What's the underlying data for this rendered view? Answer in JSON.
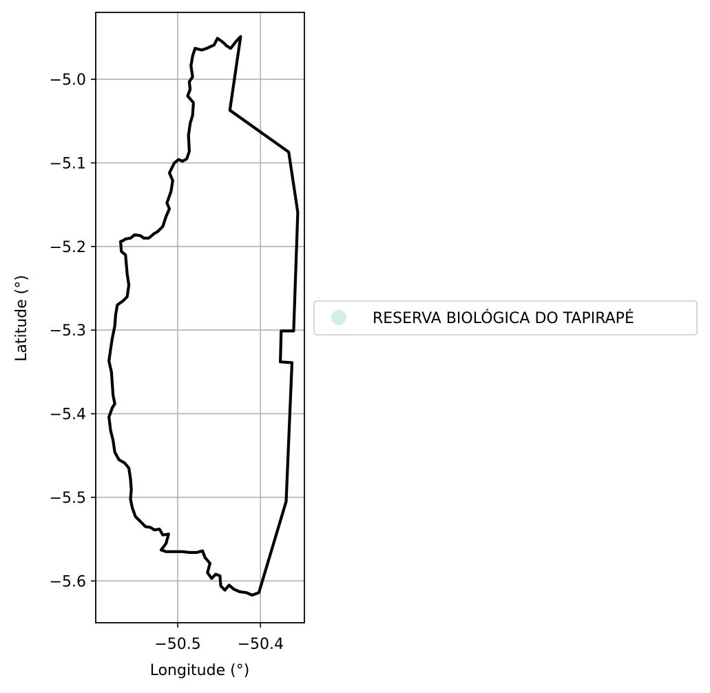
{
  "chart_data": {
    "type": "map",
    "xlabel": "Longitude (°)",
    "ylabel": "Latitude (°)",
    "xlim": [
      -50.599,
      -50.347
    ],
    "ylim": [
      -5.65,
      -4.92
    ],
    "xticks": [
      -50.5,
      -50.4
    ],
    "xtick_labels": [
      "−50.5",
      "−50.4"
    ],
    "yticks": [
      -5.0,
      -5.1,
      -5.2,
      -5.3,
      -5.4,
      -5.5,
      -5.6
    ],
    "ytick_labels": [
      "−5.0",
      "−5.1",
      "−5.2",
      "−5.3",
      "−5.4",
      "−5.5",
      "−5.6"
    ],
    "grid": true,
    "legend": {
      "placement": "center-left outside",
      "entries": [
        {
          "label": "RESERVA BIOLÓGICA DO TAPIRAPÉ",
          "color": "#d4eee0",
          "marker": "circle"
        }
      ]
    },
    "boundary": {
      "name": "RESERVA BIOLÓGICA DO TAPIRAPÉ",
      "stroke": "#000000",
      "fill": "none",
      "coordinates": [
        [
          -50.424,
          -4.949
        ],
        [
          -50.437,
          -5.037
        ],
        [
          -50.366,
          -5.087
        ],
        [
          -50.355,
          -5.159
        ],
        [
          -50.36,
          -5.301
        ],
        [
          -50.375,
          -5.301
        ],
        [
          -50.376,
          -5.338
        ],
        [
          -50.362,
          -5.339
        ],
        [
          -50.369,
          -5.505
        ],
        [
          -50.402,
          -5.614
        ],
        [
          -50.41,
          -5.617
        ],
        [
          -50.417,
          -5.614
        ],
        [
          -50.425,
          -5.613
        ],
        [
          -50.432,
          -5.61
        ],
        [
          -50.438,
          -5.605
        ],
        [
          -50.443,
          -5.611
        ],
        [
          -50.448,
          -5.606
        ],
        [
          -50.449,
          -5.594
        ],
        [
          -50.454,
          -5.592
        ],
        [
          -50.459,
          -5.597
        ],
        [
          -50.464,
          -5.59
        ],
        [
          -50.461,
          -5.579
        ],
        [
          -50.467,
          -5.572
        ],
        [
          -50.47,
          -5.564
        ],
        [
          -50.477,
          -5.566
        ],
        [
          -50.486,
          -5.566
        ],
        [
          -50.494,
          -5.565
        ],
        [
          -50.503,
          -5.565
        ],
        [
          -50.514,
          -5.565
        ],
        [
          -50.52,
          -5.563
        ],
        [
          -50.514,
          -5.555
        ],
        [
          -50.511,
          -5.544
        ],
        [
          -50.518,
          -5.545
        ],
        [
          -50.522,
          -5.538
        ],
        [
          -50.528,
          -5.539
        ],
        [
          -50.533,
          -5.536
        ],
        [
          -50.539,
          -5.535
        ],
        [
          -50.546,
          -5.528
        ],
        [
          -50.551,
          -5.523
        ],
        [
          -50.555,
          -5.512
        ],
        [
          -50.557,
          -5.502
        ],
        [
          -50.556,
          -5.491
        ],
        [
          -50.557,
          -5.478
        ],
        [
          -50.559,
          -5.465
        ],
        [
          -50.564,
          -5.459
        ],
        [
          -50.571,
          -5.455
        ],
        [
          -50.576,
          -5.446
        ],
        [
          -50.578,
          -5.432
        ],
        [
          -50.581,
          -5.42
        ],
        [
          -50.583,
          -5.404
        ],
        [
          -50.579,
          -5.393
        ],
        [
          -50.576,
          -5.388
        ],
        [
          -50.578,
          -5.378
        ],
        [
          -50.579,
          -5.364
        ],
        [
          -50.58,
          -5.35
        ],
        [
          -50.583,
          -5.337
        ],
        [
          -50.581,
          -5.323
        ],
        [
          -50.579,
          -5.31
        ],
        [
          -50.576,
          -5.295
        ],
        [
          -50.575,
          -5.282
        ],
        [
          -50.573,
          -5.27
        ],
        [
          -50.566,
          -5.265
        ],
        [
          -50.561,
          -5.26
        ],
        [
          -50.559,
          -5.246
        ],
        [
          -50.561,
          -5.233
        ],
        [
          -50.562,
          -5.222
        ],
        [
          -50.563,
          -5.21
        ],
        [
          -50.568,
          -5.206
        ],
        [
          -50.569,
          -5.194
        ],
        [
          -50.566,
          -5.193
        ],
        [
          -50.563,
          -5.191
        ],
        [
          -50.557,
          -5.19
        ],
        [
          -50.552,
          -5.186
        ],
        [
          -50.545,
          -5.187
        ],
        [
          -50.541,
          -5.19
        ],
        [
          -50.535,
          -5.19
        ],
        [
          -50.529,
          -5.185
        ],
        [
          -50.524,
          -5.182
        ],
        [
          -50.518,
          -5.176
        ],
        [
          -50.514,
          -5.164
        ],
        [
          -50.51,
          -5.155
        ],
        [
          -50.513,
          -5.148
        ],
        [
          -50.508,
          -5.134
        ],
        [
          -50.506,
          -5.121
        ],
        [
          -50.51,
          -5.112
        ],
        [
          -50.504,
          -5.1
        ],
        [
          -50.499,
          -5.096
        ],
        [
          -50.494,
          -5.098
        ],
        [
          -50.489,
          -5.095
        ],
        [
          -50.486,
          -5.086
        ],
        [
          -50.487,
          -5.067
        ],
        [
          -50.485,
          -5.053
        ],
        [
          -50.482,
          -5.043
        ],
        [
          -50.481,
          -5.028
        ],
        [
          -50.488,
          -5.02
        ],
        [
          -50.485,
          -5.012
        ],
        [
          -50.486,
          -5.003
        ],
        [
          -50.482,
          -4.997
        ],
        [
          -50.484,
          -4.984
        ],
        [
          -50.482,
          -4.972
        ],
        [
          -50.479,
          -4.963
        ],
        [
          -50.471,
          -4.965
        ],
        [
          -50.465,
          -4.963
        ],
        [
          -50.456,
          -4.959
        ],
        [
          -50.452,
          -4.951
        ],
        [
          -50.445,
          -4.956
        ],
        [
          -50.441,
          -4.96
        ],
        [
          -50.436,
          -4.963
        ],
        [
          -50.429,
          -4.954
        ],
        [
          -50.424,
          -4.949
        ]
      ]
    }
  }
}
